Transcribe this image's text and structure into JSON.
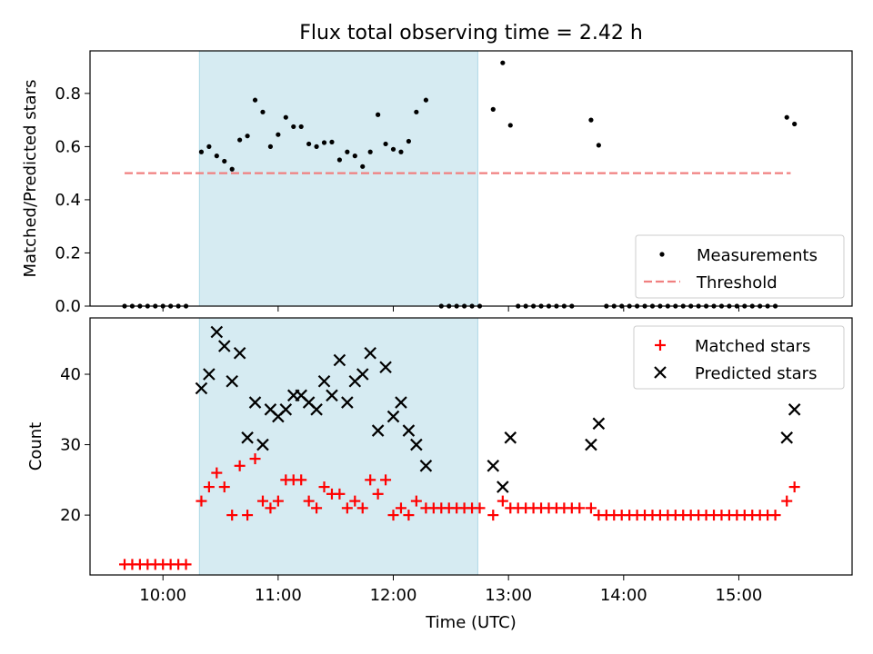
{
  "chart_data": [
    {
      "type": "scatter",
      "title": "Flux total observing time = 2.42 h",
      "ylabel": "Matched/Predicted stars",
      "xlabel": "",
      "xlim": [
        "09:22",
        "15:59"
      ],
      "ylim": [
        0,
        0.96
      ],
      "yticks": [
        "0.0",
        "0.2",
        "0.4",
        "0.6",
        "0.8"
      ],
      "highlight_band": {
        "from": "10:19",
        "to": "12:44",
        "color": "#add8e6"
      },
      "threshold": {
        "name": "Threshold",
        "value": 0.5,
        "from": "09:40",
        "to": "15:27",
        "color": "#f08080"
      },
      "legend": [
        "Measurements",
        "Threshold"
      ],
      "legend_position": "lower-right",
      "series": [
        {
          "name": "Measurements",
          "color": "#000000",
          "points": [
            [
              "09:40",
              0
            ],
            [
              "09:44",
              0
            ],
            [
              "09:48",
              0
            ],
            [
              "09:52",
              0
            ],
            [
              "09:56",
              0
            ],
            [
              "10:00",
              0
            ],
            [
              "10:04",
              0
            ],
            [
              "10:08",
              0
            ],
            [
              "10:12",
              0
            ],
            [
              "10:20",
              0.58
            ],
            [
              "10:24",
              0.6
            ],
            [
              "10:28",
              0.565
            ],
            [
              "10:32",
              0.545
            ],
            [
              "10:36",
              0.515
            ],
            [
              "10:40",
              0.625
            ],
            [
              "10:44",
              0.64
            ],
            [
              "10:48",
              0.775
            ],
            [
              "10:52",
              0.73
            ],
            [
              "10:56",
              0.6
            ],
            [
              "11:00",
              0.645
            ],
            [
              "11:04",
              0.71
            ],
            [
              "11:08",
              0.675
            ],
            [
              "11:12",
              0.675
            ],
            [
              "11:16",
              0.61
            ],
            [
              "11:20",
              0.6
            ],
            [
              "11:24",
              0.615
            ],
            [
              "11:28",
              0.617
            ],
            [
              "11:32",
              0.55
            ],
            [
              "11:36",
              0.58
            ],
            [
              "11:40",
              0.565
            ],
            [
              "11:44",
              0.525
            ],
            [
              "11:48",
              0.58
            ],
            [
              "11:52",
              0.72
            ],
            [
              "11:56",
              0.61
            ],
            [
              "12:00",
              0.59
            ],
            [
              "12:04",
              0.58
            ],
            [
              "12:08",
              0.62
            ],
            [
              "12:12",
              0.73
            ],
            [
              "12:17",
              0.775
            ],
            [
              "12:25",
              0
            ],
            [
              "12:29",
              0
            ],
            [
              "12:33",
              0
            ],
            [
              "12:37",
              0
            ],
            [
              "12:41",
              0
            ],
            [
              "12:45",
              0
            ],
            [
              "12:52",
              0.74
            ],
            [
              "12:57",
              0.915
            ],
            [
              "13:01",
              0.68
            ],
            [
              "13:05",
              0
            ],
            [
              "13:09",
              0
            ],
            [
              "13:13",
              0
            ],
            [
              "13:17",
              0
            ],
            [
              "13:21",
              0
            ],
            [
              "13:25",
              0
            ],
            [
              "13:29",
              0
            ],
            [
              "13:33",
              0
            ],
            [
              "13:43",
              0.7
            ],
            [
              "13:47",
              0.605
            ],
            [
              "13:51",
              0
            ],
            [
              "13:55",
              0
            ],
            [
              "13:59",
              0
            ],
            [
              "14:03",
              0
            ],
            [
              "14:07",
              0
            ],
            [
              "14:11",
              0
            ],
            [
              "14:15",
              0
            ],
            [
              "14:19",
              0
            ],
            [
              "14:23",
              0
            ],
            [
              "14:27",
              0
            ],
            [
              "14:31",
              0
            ],
            [
              "14:35",
              0
            ],
            [
              "14:39",
              0
            ],
            [
              "14:43",
              0
            ],
            [
              "14:47",
              0
            ],
            [
              "14:51",
              0
            ],
            [
              "14:55",
              0
            ],
            [
              "14:59",
              0
            ],
            [
              "15:03",
              0
            ],
            [
              "15:07",
              0
            ],
            [
              "15:11",
              0
            ],
            [
              "15:15",
              0
            ],
            [
              "15:19",
              0
            ],
            [
              "15:25",
              0.71
            ],
            [
              "15:29",
              0.685
            ]
          ]
        }
      ]
    },
    {
      "type": "scatter",
      "title": "",
      "xlabel": "Time (UTC)",
      "ylabel": "Count",
      "xlim": [
        "09:22",
        "15:59"
      ],
      "ylim": [
        11.5,
        48
      ],
      "xticks": [
        "10:00",
        "11:00",
        "12:00",
        "13:00",
        "14:00",
        "15:00"
      ],
      "yticks": [
        "20",
        "30",
        "40"
      ],
      "highlight_band": {
        "from": "10:19",
        "to": "12:44",
        "color": "#add8e6"
      },
      "legend": [
        "Matched stars",
        "Predicted stars"
      ],
      "legend_position": "upper-right",
      "series": [
        {
          "name": "Matched stars",
          "color": "#ff0000",
          "marker": "+",
          "points": [
            [
              "09:40",
              13
            ],
            [
              "09:44",
              13
            ],
            [
              "09:48",
              13
            ],
            [
              "09:52",
              13
            ],
            [
              "09:56",
              13
            ],
            [
              "10:00",
              13
            ],
            [
              "10:04",
              13
            ],
            [
              "10:08",
              13
            ],
            [
              "10:12",
              13
            ],
            [
              "10:20",
              22
            ],
            [
              "10:24",
              24
            ],
            [
              "10:28",
              26
            ],
            [
              "10:32",
              24
            ],
            [
              "10:36",
              20
            ],
            [
              "10:40",
              27
            ],
            [
              "10:44",
              20
            ],
            [
              "10:48",
              28
            ],
            [
              "10:52",
              22
            ],
            [
              "10:56",
              21
            ],
            [
              "11:00",
              22
            ],
            [
              "11:04",
              25
            ],
            [
              "11:08",
              25
            ],
            [
              "11:12",
              25
            ],
            [
              "11:16",
              22
            ],
            [
              "11:20",
              21
            ],
            [
              "11:24",
              24
            ],
            [
              "11:28",
              23
            ],
            [
              "11:32",
              23
            ],
            [
              "11:36",
              21
            ],
            [
              "11:40",
              22
            ],
            [
              "11:44",
              21
            ],
            [
              "11:48",
              25
            ],
            [
              "11:52",
              23
            ],
            [
              "11:56",
              25
            ],
            [
              "12:00",
              20
            ],
            [
              "12:04",
              21
            ],
            [
              "12:08",
              20
            ],
            [
              "12:12",
              22
            ],
            [
              "12:17",
              21
            ],
            [
              "12:21",
              21
            ],
            [
              "12:25",
              21
            ],
            [
              "12:29",
              21
            ],
            [
              "12:33",
              21
            ],
            [
              "12:37",
              21
            ],
            [
              "12:41",
              21
            ],
            [
              "12:45",
              21
            ],
            [
              "12:52",
              20
            ],
            [
              "12:57",
              22
            ],
            [
              "13:01",
              21
            ],
            [
              "13:05",
              21
            ],
            [
              "13:09",
              21
            ],
            [
              "13:13",
              21
            ],
            [
              "13:17",
              21
            ],
            [
              "13:21",
              21
            ],
            [
              "13:25",
              21
            ],
            [
              "13:29",
              21
            ],
            [
              "13:33",
              21
            ],
            [
              "13:37",
              21
            ],
            [
              "13:43",
              21
            ],
            [
              "13:47",
              20
            ],
            [
              "13:51",
              20
            ],
            [
              "13:55",
              20
            ],
            [
              "13:59",
              20
            ],
            [
              "14:03",
              20
            ],
            [
              "14:07",
              20
            ],
            [
              "14:11",
              20
            ],
            [
              "14:15",
              20
            ],
            [
              "14:19",
              20
            ],
            [
              "14:23",
              20
            ],
            [
              "14:27",
              20
            ],
            [
              "14:31",
              20
            ],
            [
              "14:35",
              20
            ],
            [
              "14:39",
              20
            ],
            [
              "14:43",
              20
            ],
            [
              "14:47",
              20
            ],
            [
              "14:51",
              20
            ],
            [
              "14:55",
              20
            ],
            [
              "14:59",
              20
            ],
            [
              "15:03",
              20
            ],
            [
              "15:07",
              20
            ],
            [
              "15:11",
              20
            ],
            [
              "15:15",
              20
            ],
            [
              "15:19",
              20
            ],
            [
              "15:25",
              22
            ],
            [
              "15:29",
              24
            ]
          ]
        },
        {
          "name": "Predicted stars",
          "color": "#000000",
          "marker": "x",
          "points": [
            [
              "10:20",
              38
            ],
            [
              "10:24",
              40
            ],
            [
              "10:28",
              46
            ],
            [
              "10:32",
              44
            ],
            [
              "10:36",
              39
            ],
            [
              "10:40",
              43
            ],
            [
              "10:44",
              31
            ],
            [
              "10:48",
              36
            ],
            [
              "10:52",
              30
            ],
            [
              "10:56",
              35
            ],
            [
              "11:00",
              34
            ],
            [
              "11:04",
              35
            ],
            [
              "11:08",
              37
            ],
            [
              "11:12",
              37
            ],
            [
              "11:16",
              36
            ],
            [
              "11:20",
              35
            ],
            [
              "11:24",
              39
            ],
            [
              "11:28",
              37
            ],
            [
              "11:32",
              42
            ],
            [
              "11:36",
              36
            ],
            [
              "11:40",
              39
            ],
            [
              "11:44",
              40
            ],
            [
              "11:48",
              43
            ],
            [
              "11:52",
              32
            ],
            [
              "11:56",
              41
            ],
            [
              "12:00",
              34
            ],
            [
              "12:04",
              36
            ],
            [
              "12:08",
              32
            ],
            [
              "12:12",
              30
            ],
            [
              "12:17",
              27
            ],
            [
              "12:52",
              27
            ],
            [
              "12:57",
              24
            ],
            [
              "13:01",
              31
            ],
            [
              "13:43",
              30
            ],
            [
              "13:47",
              33
            ],
            [
              "15:25",
              31
            ],
            [
              "15:29",
              35
            ]
          ]
        }
      ]
    }
  ]
}
